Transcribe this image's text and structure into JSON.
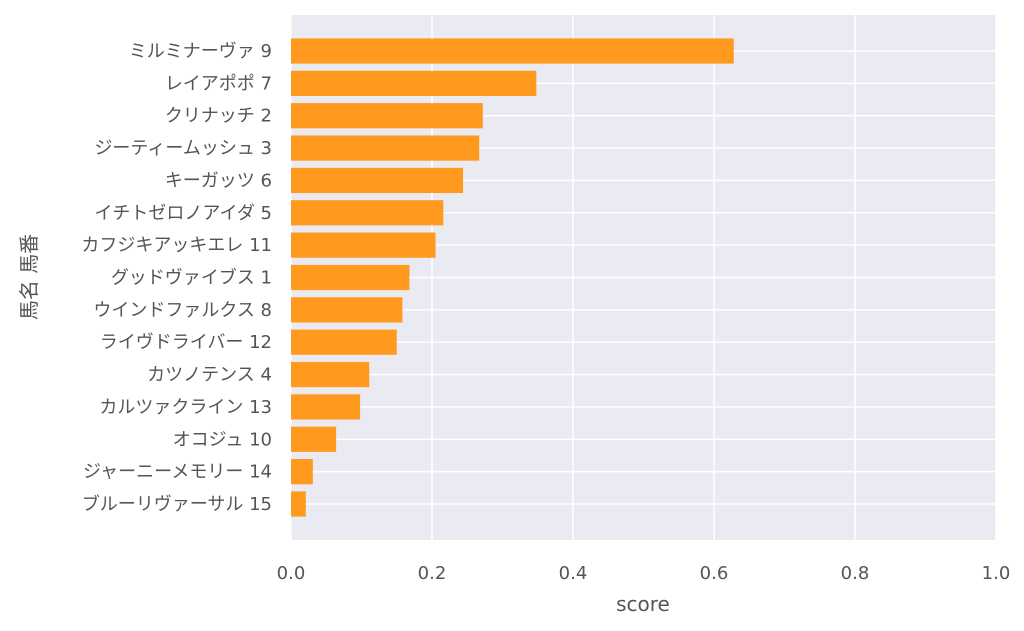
{
  "chart_data": {
    "type": "bar",
    "orientation": "horizontal",
    "xlabel": "score",
    "ylabel": "馬名 馬番",
    "xlim": [
      0.0,
      1.0
    ],
    "xticks": [
      "0.0",
      "0.2",
      "0.4",
      "0.6",
      "0.8",
      "1.0"
    ],
    "grid": true,
    "legend": "none",
    "bar_color": "#ff9a1f",
    "plot_background": "#eaeaf2",
    "categories": [
      "ミルミナーヴァ 9",
      "レイアポポ 7",
      "クリナッチ 2",
      "ジーティームッシュ 3",
      "キーガッツ 6",
      "イチトゼロノアイダ 5",
      "カフジキアッキエレ 11",
      "グッドヴァイブス 1",
      "ウインドファルクス 8",
      "ライヴドライバー 12",
      "カツノテンス 4",
      "カルツァクライン 13",
      "オコジュ 10",
      "ジャーニーメモリー 14",
      "ブルーリヴァーサル 15"
    ],
    "values": [
      0.628,
      0.348,
      0.272,
      0.267,
      0.244,
      0.216,
      0.205,
      0.168,
      0.158,
      0.15,
      0.111,
      0.098,
      0.064,
      0.031,
      0.021
    ]
  }
}
